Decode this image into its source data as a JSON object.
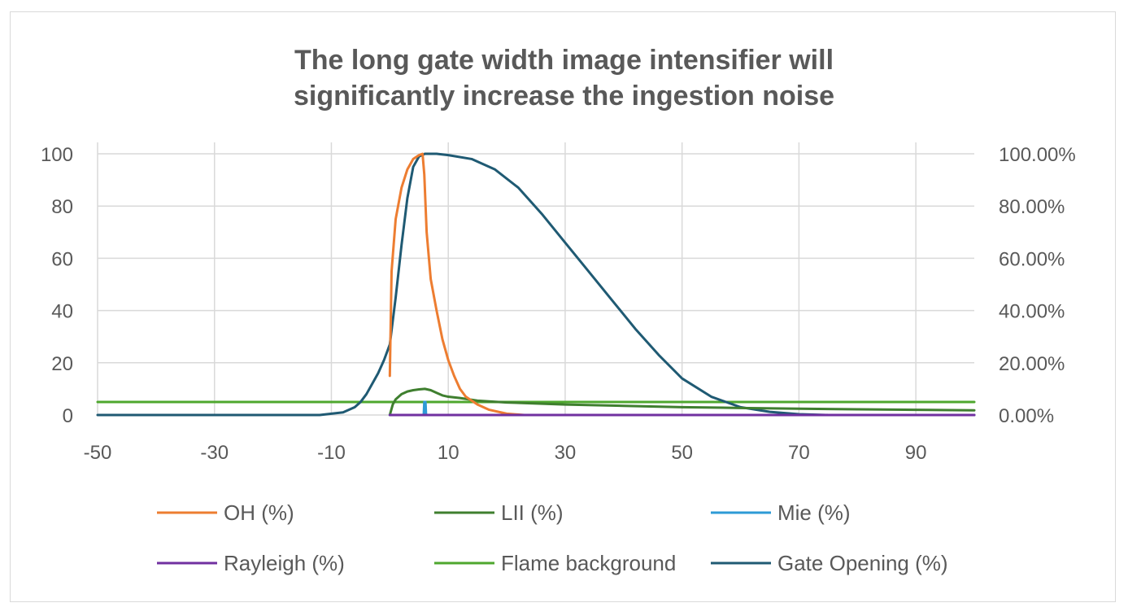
{
  "chart_data": {
    "type": "line",
    "title_line1": "The long gate width image intensifier will",
    "title_line2": "significantly increase the ingestion noise",
    "xlim": [
      -50,
      100
    ],
    "x_ticks": [
      "-50",
      "-30",
      "-10",
      "10",
      "30",
      "50",
      "70",
      "90"
    ],
    "ylim_left": [
      0,
      100
    ],
    "y_ticks_left": [
      "0",
      "20",
      "40",
      "60",
      "80",
      "100"
    ],
    "ylim_right": [
      0,
      1
    ],
    "y_ticks_right": [
      "0.00%",
      "20.00%",
      "40.00%",
      "60.00%",
      "80.00%",
      "100.00%"
    ],
    "grid": true,
    "legend_position": "bottom",
    "series": [
      {
        "name": "OH (%)",
        "color": "#ED7D31",
        "axis": "left",
        "points": [
          [
            0,
            15
          ],
          [
            0.3,
            55
          ],
          [
            1,
            75
          ],
          [
            2,
            87
          ],
          [
            3,
            94
          ],
          [
            4,
            98
          ],
          [
            5,
            99.5
          ],
          [
            5.6,
            100
          ],
          [
            5.9,
            92
          ],
          [
            6.3,
            70
          ],
          [
            7,
            52
          ],
          [
            8,
            40
          ],
          [
            9,
            29
          ],
          [
            10,
            21
          ],
          [
            11,
            15
          ],
          [
            12,
            10
          ],
          [
            13,
            7
          ],
          [
            15,
            4
          ],
          [
            17,
            2
          ],
          [
            20,
            0.5
          ],
          [
            23,
            0
          ],
          [
            100,
            0
          ]
        ]
      },
      {
        "name": "LII (%)",
        "color": "#3F7F2F",
        "axis": "left",
        "points": [
          [
            0,
            0
          ],
          [
            0.5,
            4
          ],
          [
            1,
            6
          ],
          [
            2,
            8
          ],
          [
            3,
            9
          ],
          [
            4,
            9.5
          ],
          [
            5,
            9.8
          ],
          [
            6,
            10
          ],
          [
            7,
            9.5
          ],
          [
            8,
            8.5
          ],
          [
            9,
            7.5
          ],
          [
            10,
            7
          ],
          [
            12,
            6.5
          ],
          [
            15,
            5.5
          ],
          [
            20,
            4.8
          ],
          [
            30,
            4
          ],
          [
            40,
            3.5
          ],
          [
            50,
            3
          ],
          [
            60,
            2.7
          ],
          [
            70,
            2.4
          ],
          [
            80,
            2.2
          ],
          [
            90,
            2
          ],
          [
            100,
            1.8
          ]
        ]
      },
      {
        "name": "Mie (%)",
        "color": "#2E9BD6",
        "axis": "left",
        "points": [
          [
            0,
            0
          ],
          [
            5.8,
            0
          ],
          [
            5.9,
            5
          ],
          [
            6.1,
            5
          ],
          [
            6.2,
            0
          ],
          [
            100,
            0
          ]
        ]
      },
      {
        "name": "Rayleigh (%)",
        "color": "#7030A0",
        "axis": "left",
        "points": [
          [
            0,
            0
          ],
          [
            100,
            0
          ]
        ]
      },
      {
        "name": "Flame background",
        "color": "#4EA72E",
        "axis": "left",
        "points": [
          [
            -50,
            5
          ],
          [
            100,
            5
          ]
        ]
      },
      {
        "name": "Gate Opening (%)",
        "color": "#1F5A73",
        "axis": "right",
        "points": [
          [
            -50,
            0
          ],
          [
            -12,
            0
          ],
          [
            -10,
            0.005
          ],
          [
            -8,
            0.01
          ],
          [
            -6,
            0.03
          ],
          [
            -5,
            0.05
          ],
          [
            -4,
            0.08
          ],
          [
            -3,
            0.12
          ],
          [
            -2,
            0.16
          ],
          [
            -1,
            0.21
          ],
          [
            0,
            0.27
          ],
          [
            1,
            0.45
          ],
          [
            2,
            0.65
          ],
          [
            3,
            0.83
          ],
          [
            4,
            0.95
          ],
          [
            5,
            0.99
          ],
          [
            6,
            1.0
          ],
          [
            8,
            1.0
          ],
          [
            10,
            0.995
          ],
          [
            14,
            0.98
          ],
          [
            18,
            0.94
          ],
          [
            22,
            0.87
          ],
          [
            26,
            0.77
          ],
          [
            30,
            0.66
          ],
          [
            34,
            0.55
          ],
          [
            38,
            0.44
          ],
          [
            42,
            0.33
          ],
          [
            46,
            0.23
          ],
          [
            50,
            0.14
          ],
          [
            55,
            0.07
          ],
          [
            60,
            0.03
          ],
          [
            65,
            0.012
          ],
          [
            70,
            0.003
          ],
          [
            75,
            0
          ],
          [
            100,
            0
          ]
        ]
      }
    ]
  }
}
